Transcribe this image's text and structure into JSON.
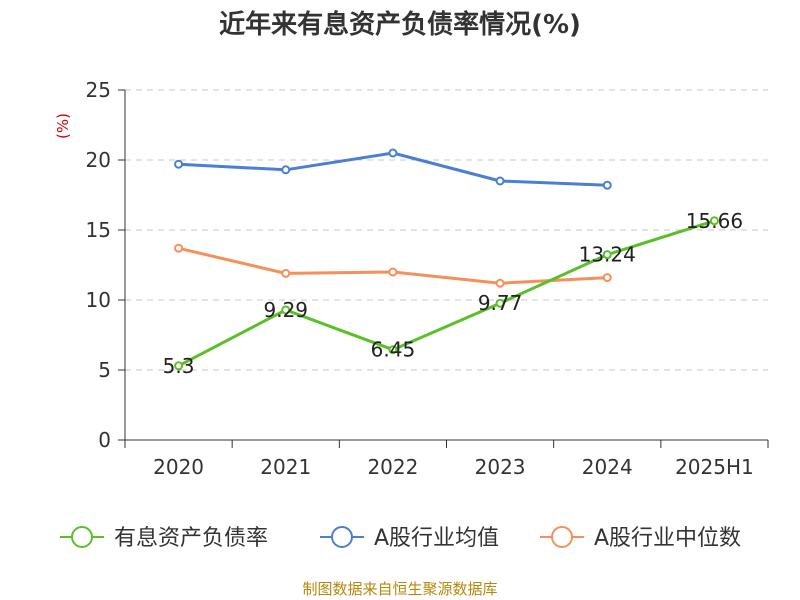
{
  "chart_data": {
    "type": "line",
    "title": "近年来有息资产负债率情况(%)",
    "ylabel": "(%)",
    "xlabel": "",
    "ylim": [
      0,
      25
    ],
    "yticks": [
      0,
      5,
      10,
      15,
      20,
      25
    ],
    "grid": true,
    "legend_position": "bottom",
    "categories": [
      "2020",
      "2021",
      "2022",
      "2023",
      "2024",
      "2025H1"
    ],
    "series": [
      {
        "name": "有息资产负债率",
        "color": "#5cbf2a",
        "values": [
          5.3,
          9.29,
          6.45,
          9.77,
          13.24,
          15.66
        ],
        "labels": [
          "5.3",
          "9.29",
          "6.45",
          "9.77",
          "13.24",
          "15.66"
        ]
      },
      {
        "name": "A股行业均值",
        "color": "#4a7fd4",
        "values": [
          19.7,
          19.3,
          20.5,
          18.5,
          18.2,
          null
        ],
        "labels": null
      },
      {
        "name": "A股行业中位数",
        "color": "#f5905a",
        "values": [
          13.7,
          11.9,
          12.0,
          11.2,
          11.6,
          null
        ],
        "labels": null
      }
    ]
  },
  "source": "制图数据来自恒生聚源数据库"
}
